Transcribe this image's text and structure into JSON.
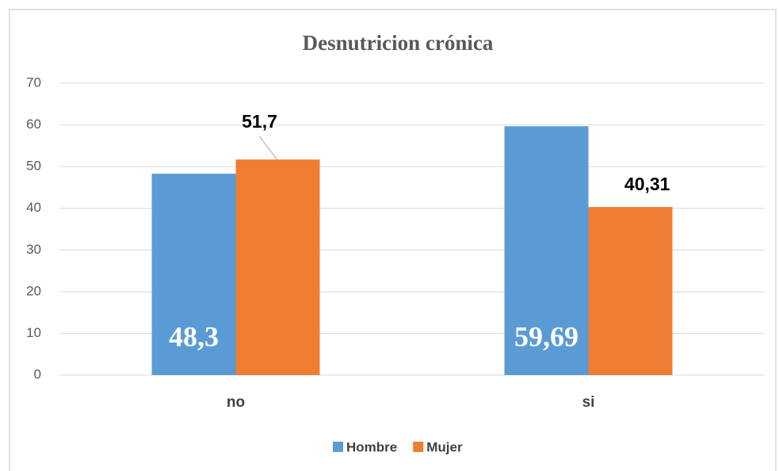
{
  "chart_data": {
    "type": "bar",
    "title": "Desnutricion crónica",
    "categories": [
      "no",
      "si"
    ],
    "series": [
      {
        "name": "Hombre",
        "color": "#5b9bd5",
        "values": [
          48.3,
          59.69
        ],
        "value_labels": [
          "48,3",
          "59,69"
        ]
      },
      {
        "name": "Mujer",
        "color": "#ed7d31",
        "values": [
          51.7,
          40.31
        ],
        "value_labels": [
          "51,7",
          "40,31"
        ]
      }
    ],
    "ylim": [
      0,
      70
    ],
    "yticks": [
      0,
      10,
      20,
      30,
      40,
      50,
      60,
      70
    ],
    "grid": true,
    "legend": "bottom"
  }
}
